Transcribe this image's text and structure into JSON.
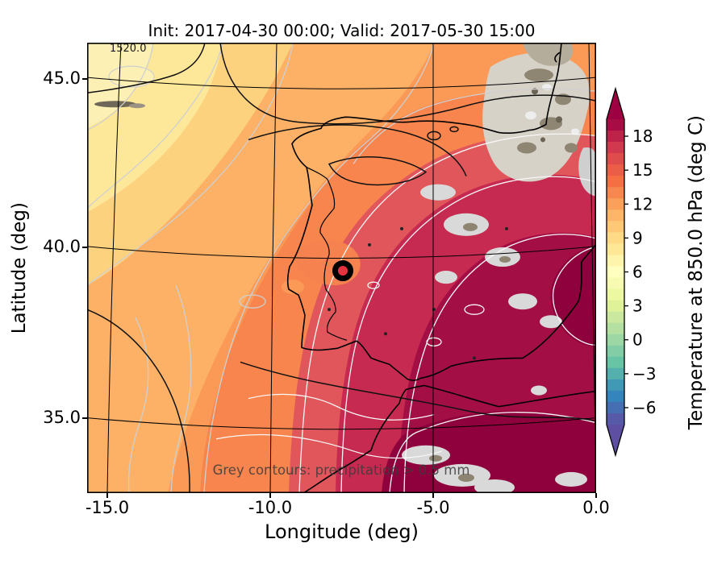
{
  "title": "Init: 2017-04-30 00:00; Valid: 2017-05-30 15:00",
  "axes": {
    "xlabel": "Longitude (deg)",
    "ylabel": "Latitude (deg)",
    "xticks": [
      "-15.0",
      "-10.0",
      "-5.0",
      "0.0"
    ],
    "yticks": [
      "45.0",
      "40.0",
      "35.0"
    ]
  },
  "colorbar": {
    "label": "Temperature at 850.0 hPa (deg C)",
    "tick_labels": [
      "18",
      "15",
      "12",
      "9",
      "6",
      "3",
      "0",
      "−3",
      "−6"
    ],
    "tick_values": [
      18,
      15,
      12,
      9,
      6,
      3,
      0,
      -3,
      -6
    ],
    "vmin": -7.5,
    "vmax": 19.5,
    "extend": "both",
    "colormap_name": "Spectral_r",
    "colormap_stops": [
      "#5e4fa2",
      "#3288bd",
      "#66c2a5",
      "#abdda4",
      "#e6f598",
      "#ffffbf",
      "#fee08b",
      "#fdae61",
      "#f46d43",
      "#d53e4f",
      "#9e0142"
    ]
  },
  "map": {
    "caption": "Grey contours: precipitation > 0.5 mm",
    "contour_label": "1520.0",
    "marker": {
      "lon": -7.7,
      "lat": 39.3
    },
    "region": "Iberian Peninsula"
  },
  "chart_data": {
    "type": "heatmap",
    "title": "Init: 2017-04-30 00:00; Valid: 2017-05-30 15:00",
    "xlabel": "Longitude (deg)",
    "ylabel": "Latitude (deg)",
    "xlim": [
      -15.6,
      0.1
    ],
    "ylim": [
      32.8,
      46.1
    ],
    "grid": true,
    "colorbar_label": "Temperature at 850.0 hPa (deg C)",
    "colorbar_ticks": [
      18,
      15,
      12,
      9,
      6,
      3,
      0,
      -3,
      -6
    ],
    "field": "Temperature at 850.0 hPa (deg C), shaded with Spectral_r colormap, warm (18-20 C) over southern Iberia and Alboran Sea, cooler (8-12 C) over the NW Atlantic",
    "overlays": [
      "black contours: geopotential height, labeled 1520.0",
      "grey contours: precipitation > 0.5 mm",
      "grey shaded patches: precipitation areas over Pyrenees, E Spain and NW Africa",
      "black ring marker near lon -7.7, lat 39.3"
    ]
  }
}
